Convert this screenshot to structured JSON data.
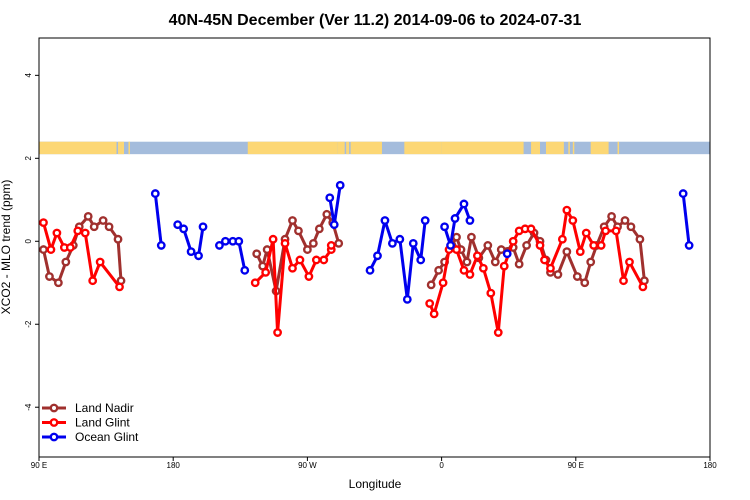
{
  "chart_data": {
    "type": "line",
    "title": "40N-45N December (Ver 11.2)   2014-09-06 to 2024-07-31",
    "xlabel": "Longitude",
    "ylabel": "XCO2 - MLO trend (ppm)",
    "xlim": [
      90,
      540
    ],
    "ylim": [
      -5.2,
      4.9
    ],
    "x_ticks": [
      {
        "value": 90,
        "label": "90 E"
      },
      {
        "value": 180,
        "label": "180"
      },
      {
        "value": 270,
        "label": "90 W"
      },
      {
        "value": 360,
        "label": "0"
      },
      {
        "value": 450,
        "label": "90 E"
      },
      {
        "value": 540,
        "label": "180"
      }
    ],
    "y_ticks": [
      {
        "value": 4,
        "label": "4"
      },
      {
        "value": 2,
        "label": "2"
      },
      {
        "value": 0,
        "label": "0"
      },
      {
        "value": -2,
        "label": "-2"
      },
      {
        "value": -4,
        "label": "-4"
      }
    ],
    "legend_position": "bottom-left",
    "surface_band": {
      "y_range": [
        2.1,
        2.4
      ],
      "ocean_color": "#a4bcdc",
      "land_color": "#fcd775",
      "land_segments": [
        [
          90,
          142
        ],
        [
          143,
          145
        ],
        [
          145,
          147
        ],
        [
          150,
          151
        ],
        [
          230,
          290
        ],
        [
          290,
          295
        ],
        [
          296,
          298
        ],
        [
          299,
          320
        ],
        [
          335,
          360
        ],
        [
          360,
          415
        ],
        [
          420,
          426
        ],
        [
          430,
          442
        ],
        [
          445,
          446
        ],
        [
          448,
          449
        ],
        [
          460,
          472
        ],
        [
          478,
          479
        ]
      ]
    },
    "series": [
      {
        "name": "Land Nadir",
        "color": "#a0302e",
        "segments": [
          [
            [
              93,
              -0.2
            ],
            [
              97,
              -0.85
            ],
            [
              103,
              -1.0
            ],
            [
              108,
              -0.5
            ],
            [
              113,
              -0.1
            ],
            [
              117,
              0.35
            ],
            [
              123,
              0.6
            ],
            [
              127,
              0.35
            ],
            [
              133,
              0.5
            ],
            [
              137,
              0.35
            ],
            [
              143,
              0.05
            ],
            [
              145,
              -0.95
            ]
          ],
          [
            [
              236,
              -0.3
            ],
            [
              240,
              -0.6
            ],
            [
              243,
              -0.2
            ],
            [
              249,
              -1.2
            ],
            [
              255,
              0.05
            ],
            [
              260,
              0.5
            ],
            [
              264,
              0.25
            ],
            [
              270,
              -0.2
            ],
            [
              274,
              -0.05
            ],
            [
              278,
              0.3
            ],
            [
              283,
              0.65
            ],
            [
              287,
              0.45
            ],
            [
              291,
              -0.05
            ]
          ],
          [
            [
              353,
              -1.05
            ],
            [
              358,
              -0.7
            ],
            [
              362,
              -0.5
            ],
            [
              367,
              -0.1
            ],
            [
              370,
              0.1
            ],
            [
              373,
              -0.2
            ],
            [
              377,
              -0.5
            ],
            [
              380,
              0.1
            ],
            [
              385,
              -0.4
            ],
            [
              391,
              -0.1
            ],
            [
              396,
              -0.5
            ],
            [
              400,
              -0.2
            ],
            [
              408,
              -0.15
            ],
            [
              412,
              -0.55
            ],
            [
              417,
              -0.1
            ],
            [
              422,
              0.2
            ],
            [
              426,
              0.0
            ],
            [
              430,
              -0.45
            ],
            [
              433,
              -0.75
            ],
            [
              438,
              -0.8
            ],
            [
              444,
              -0.25
            ],
            [
              451,
              -0.85
            ],
            [
              456,
              -1.0
            ],
            [
              460,
              -0.5
            ],
            [
              464,
              -0.1
            ],
            [
              469,
              0.35
            ],
            [
              474,
              0.6
            ],
            [
              478,
              0.35
            ],
            [
              483,
              0.5
            ],
            [
              487,
              0.35
            ],
            [
              493,
              0.05
            ],
            [
              496,
              -0.95
            ]
          ]
        ]
      },
      {
        "name": "Land Glint",
        "color": "#ff0000",
        "segments": [
          [
            [
              93,
              0.45
            ],
            [
              98,
              -0.2
            ],
            [
              102,
              0.2
            ],
            [
              107,
              -0.15
            ],
            [
              111,
              -0.15
            ],
            [
              116,
              0.25
            ],
            [
              121,
              0.2
            ],
            [
              126,
              -0.95
            ],
            [
              131,
              -0.5
            ],
            [
              144,
              -1.1
            ]
          ],
          [
            [
              235,
              -1.0
            ],
            [
              242,
              -0.75
            ],
            [
              247,
              0.05
            ],
            [
              250,
              -2.2
            ],
            [
              255,
              -0.05
            ],
            [
              260,
              -0.65
            ],
            [
              265,
              -0.45
            ],
            [
              271,
              -0.85
            ],
            [
              276,
              -0.45
            ],
            [
              281,
              -0.45
            ],
            [
              286,
              -0.2
            ],
            [
              286,
              -0.1
            ]
          ],
          [
            [
              352,
              -1.5
            ],
            [
              355,
              -1.75
            ],
            [
              361,
              -1.0
            ],
            [
              365,
              -0.2
            ],
            [
              370,
              -0.2
            ],
            [
              375,
              -0.7
            ],
            [
              379,
              -0.8
            ],
            [
              384,
              -0.35
            ],
            [
              388,
              -0.65
            ],
            [
              393,
              -1.25
            ],
            [
              398,
              -2.2
            ],
            [
              402,
              -0.6
            ],
            [
              408,
              0.0
            ],
            [
              412,
              0.25
            ],
            [
              416,
              0.3
            ],
            [
              420,
              0.3
            ],
            [
              426,
              -0.1
            ],
            [
              429,
              -0.45
            ],
            [
              433,
              -0.65
            ],
            [
              441,
              0.05
            ],
            [
              444,
              0.75
            ],
            [
              448,
              0.5
            ],
            [
              453,
              -0.25
            ],
            [
              457,
              0.2
            ],
            [
              462,
              -0.1
            ],
            [
              467,
              -0.1
            ],
            [
              470,
              0.25
            ],
            [
              477,
              0.25
            ],
            [
              482,
              -0.95
            ],
            [
              486,
              -0.5
            ],
            [
              495,
              -1.1
            ]
          ]
        ]
      },
      {
        "name": "Ocean Glint",
        "color": "#0000ee",
        "segments": [
          [
            [
              168,
              1.15
            ],
            [
              172,
              -0.1
            ]
          ],
          [
            [
              183,
              0.4
            ],
            [
              187,
              0.3
            ],
            [
              192,
              -0.25
            ],
            [
              197,
              -0.35
            ],
            [
              200,
              0.35
            ]
          ],
          [
            [
              211,
              -0.1
            ],
            [
              215,
              0.0
            ],
            [
              220,
              0.0
            ],
            [
              224,
              0.0
            ],
            [
              228,
              -0.7
            ]
          ],
          [
            [
              285,
              1.05
            ],
            [
              288,
              0.4
            ],
            [
              292,
              1.35
            ]
          ],
          [
            [
              312,
              -0.7
            ],
            [
              317,
              -0.35
            ],
            [
              322,
              0.5
            ],
            [
              327,
              -0.05
            ],
            [
              332,
              0.05
            ],
            [
              337,
              -1.4
            ],
            [
              341,
              -0.05
            ],
            [
              346,
              -0.45
            ],
            [
              349,
              0.5
            ]
          ],
          [
            [
              362,
              0.35
            ],
            [
              366,
              -0.1
            ],
            [
              369,
              0.55
            ],
            [
              375,
              0.9
            ],
            [
              379,
              0.5
            ]
          ],
          [
            [
              404,
              -0.3
            ]
          ],
          [
            [
              522,
              1.15
            ],
            [
              526,
              -0.1
            ]
          ]
        ]
      }
    ]
  }
}
